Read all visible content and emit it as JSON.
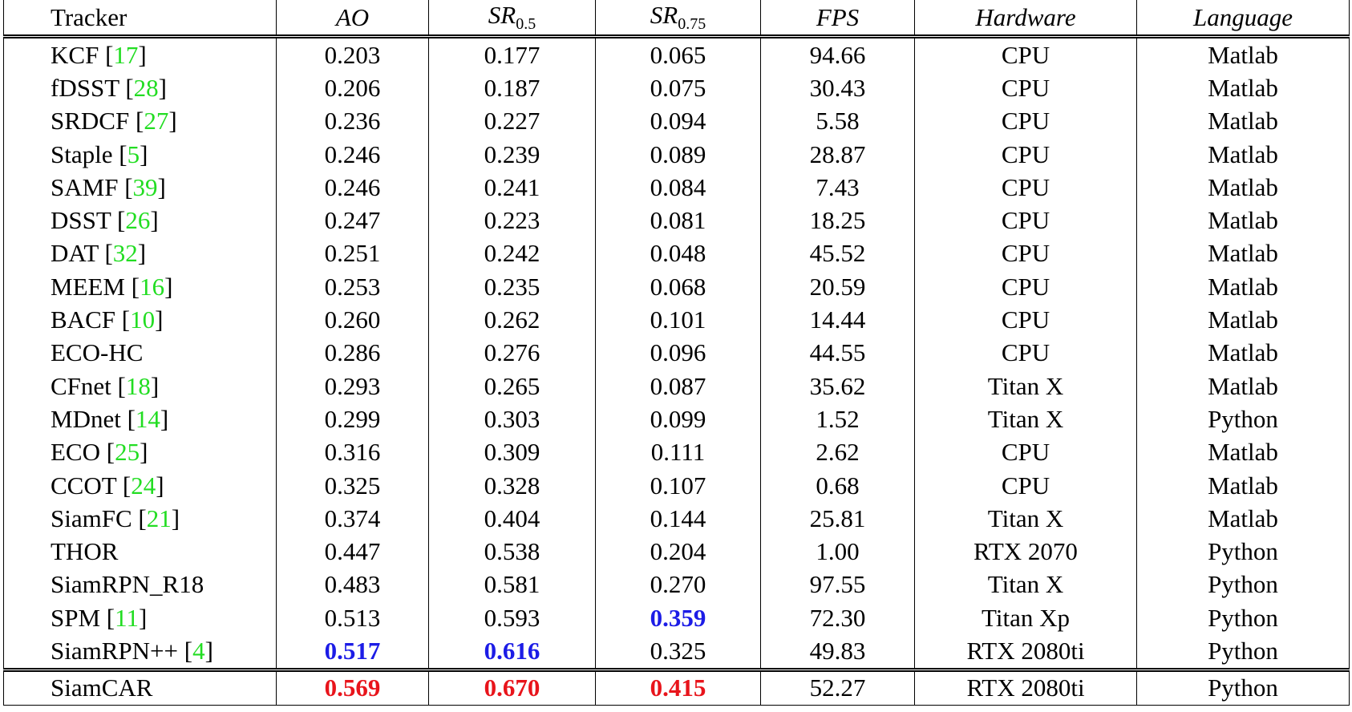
{
  "table": {
    "columns": [
      {
        "text": "Tracker"
      },
      {
        "text": "AO"
      },
      {
        "text": "SR",
        "sub": "0.5"
      },
      {
        "text": "SR",
        "sub": "0.75"
      },
      {
        "text": "FPS"
      },
      {
        "text": "Hardware"
      },
      {
        "text": "Language"
      }
    ],
    "brackets": [
      "[",
      "]"
    ],
    "colors": {
      "best": "#e8141b",
      "second": "#1c1ce6",
      "ref": "#22dd22"
    },
    "rows": [
      {
        "tracker": "KCF",
        "ref": "17",
        "cells": [
          "0.203",
          "0.177",
          "0.065",
          "94.66",
          "CPU",
          "Matlab"
        ]
      },
      {
        "tracker": "fDSST",
        "ref": "28",
        "cells": [
          "0.206",
          "0.187",
          "0.075",
          "30.43",
          "CPU",
          "Matlab"
        ]
      },
      {
        "tracker": "SRDCF",
        "ref": "27",
        "cells": [
          "0.236",
          "0.227",
          "0.094",
          "5.58",
          "CPU",
          "Matlab"
        ]
      },
      {
        "tracker": "Staple",
        "ref": "5",
        "cells": [
          "0.246",
          "0.239",
          "0.089",
          "28.87",
          "CPU",
          "Matlab"
        ]
      },
      {
        "tracker": "SAMF",
        "ref": "39",
        "cells": [
          "0.246",
          "0.241",
          "0.084",
          "7.43",
          "CPU",
          "Matlab"
        ]
      },
      {
        "tracker": "DSST",
        "ref": "26",
        "cells": [
          "0.247",
          "0.223",
          "0.081",
          "18.25",
          "CPU",
          "Matlab"
        ]
      },
      {
        "tracker": "DAT",
        "ref": "32",
        "cells": [
          "0.251",
          "0.242",
          "0.048",
          "45.52",
          "CPU",
          "Matlab"
        ]
      },
      {
        "tracker": "MEEM",
        "ref": "16",
        "cells": [
          "0.253",
          "0.235",
          "0.068",
          "20.59",
          "CPU",
          "Matlab"
        ]
      },
      {
        "tracker": "BACF",
        "ref": "10",
        "cells": [
          "0.260",
          "0.262",
          "0.101",
          "14.44",
          "CPU",
          "Matlab"
        ]
      },
      {
        "tracker": "ECO-HC",
        "cells": [
          "0.286",
          "0.276",
          "0.096",
          "44.55",
          "CPU",
          "Matlab"
        ]
      },
      {
        "tracker": "CFnet",
        "ref": "18",
        "cells": [
          "0.293",
          "0.265",
          "0.087",
          "35.62",
          "Titan X",
          "Matlab"
        ]
      },
      {
        "tracker": "MDnet",
        "ref": "14",
        "cells": [
          "0.299",
          "0.303",
          "0.099",
          "1.52",
          "Titan X",
          "Python"
        ]
      },
      {
        "tracker": "ECO",
        "ref": "25",
        "cells": [
          "0.316",
          "0.309",
          "0.111",
          "2.62",
          "CPU",
          "Matlab"
        ]
      },
      {
        "tracker": "CCOT",
        "ref": "24",
        "cells": [
          "0.325",
          "0.328",
          "0.107",
          "0.68",
          "CPU",
          "Matlab"
        ]
      },
      {
        "tracker": "SiamFC",
        "ref": "21",
        "cells": [
          "0.374",
          "0.404",
          "0.144",
          "25.81",
          "Titan X",
          "Matlab"
        ]
      },
      {
        "tracker": "THOR",
        "cells": [
          "0.447",
          "0.538",
          "0.204",
          "1.00",
          "RTX 2070",
          "Python"
        ]
      },
      {
        "tracker": "SiamRPN_R18",
        "cells": [
          "0.483",
          "0.581",
          "0.270",
          "97.55",
          "Titan X",
          "Python"
        ]
      },
      {
        "tracker": "SPM",
        "ref": "11",
        "cells": [
          "0.513",
          "0.593",
          "0.359",
          "72.30",
          "Titan Xp",
          "Python"
        ],
        "emphasis": {
          "2": "second"
        }
      },
      {
        "tracker": "SiamRPN++",
        "ref": "4",
        "cells": [
          "0.517",
          "0.616",
          "0.325",
          "49.83",
          "RTX 2080ti",
          "Python"
        ],
        "emphasis": {
          "0": "second",
          "1": "second"
        }
      },
      {
        "tracker": "SiamCAR",
        "cells": [
          "0.569",
          "0.670",
          "0.415",
          "52.27",
          "RTX 2080ti",
          "Python"
        ],
        "emphasis": {
          "0": "best",
          "1": "best",
          "2": "best"
        },
        "separated": true
      }
    ]
  }
}
